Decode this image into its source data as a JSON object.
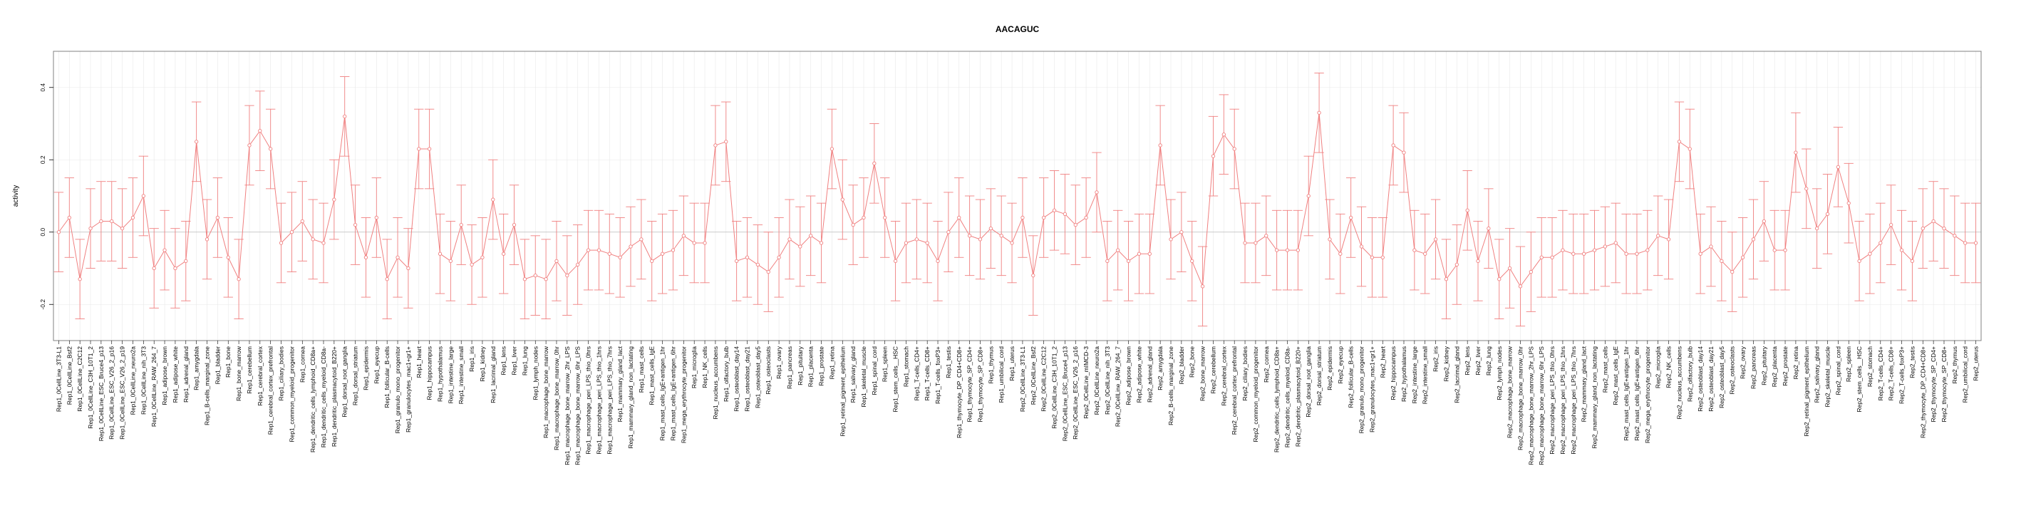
{
  "chart_data": {
    "type": "line",
    "title": "AACAGUC",
    "xlabel": "",
    "ylabel": "activity",
    "ylim": [
      -0.3,
      0.5
    ],
    "yticks": [
      -0.2,
      0.0,
      0.2,
      0.4
    ],
    "ytick_labels": [
      "-0.2",
      "0.0",
      "0.2",
      "0.4"
    ],
    "grid": true,
    "error_bar_halfwidth": 0.11,
    "colors": {
      "series": "#f08080",
      "grid": "#e8e8e8",
      "frame": "#808080",
      "zero": "#bbbbbb"
    },
    "categories": [
      "Rep1_0CellLine_3T3-L1",
      "Rep1_0CellLine_Bsf2",
      "Rep1_0CellLine_C2C12",
      "Rep1_0CellLine_C3H_10T1_2",
      "Rep1_0CellLine_ESC_Bruce4_p13",
      "Rep1_0CellLine_ESC_V26_2_p16",
      "Rep1_0CellLine_ESC_V26_2_p19",
      "Rep1_0CellLine_neuro2a",
      "Rep1_0CellLine_nih_3T3",
      "Rep1_0CellLine_RAW_264_7",
      "Rep1_adipose_brown",
      "Rep1_adipose_white",
      "Rep1_adrenal_gland",
      "Rep1_amygdala",
      "Rep1_B-cells_marginal_zone",
      "Rep1_bladder",
      "Rep1_bone",
      "Rep1_bone_marrow",
      "Rep1_cerebellum",
      "Rep1_cerebral_cortex",
      "Rep1_cerebral_cortex_prefrontal",
      "Rep1_ciliary_bodies",
      "Rep1_common_myeloid_progenitor",
      "Rep1_cornea",
      "Rep1_dendritic_cells_lymphoid_CD8a+",
      "Rep1_dendritic_cells_myeloid_CD8a-",
      "Rep1_dendritic_plasmacytoid_B220+",
      "Rep1_dorsal_root_ganglia",
      "Rep1_dorsal_striatum",
      "Rep1_epidermis",
      "Rep1_eyecup",
      "Rep1_follicular_B-cells",
      "Rep1_granulo_mono_progenitor",
      "Rep1_granulocytes_mac1+gr1+",
      "Rep1_heart",
      "Rep1_hippocampus",
      "Rep1_hypothalamus",
      "Rep1_intestine_large",
      "Rep1_intestine_small",
      "Rep1_iris",
      "Rep1_kidney",
      "Rep1_lacrimal_gland",
      "Rep1_lens",
      "Rep1_liver",
      "Rep1_lung",
      "Rep1_lymph_nodes",
      "Rep1_macrophage_bone_marrow",
      "Rep1_macrophage_bone_marrow_0hr",
      "Rep1_macrophage_bone_marrow_2hr_LPS",
      "Rep1_macrophage_bone_marrow_6hr_LPS",
      "Rep1_macrophage_peri_LPS_thio_0hrs",
      "Rep1_macrophage_peri_LPS_thio_1hrs",
      "Rep1_macrophage_peri_LPS_thio_7hrs",
      "Rep1_mammary_gland_lact",
      "Rep1_mammary_gland_non_lactating",
      "Rep1_mast_cells",
      "Rep1_mast_cells_IgE",
      "Rep1_mast_cells_IgE+antigen_1hr",
      "Rep1_mast_cells_IgE+antigen_6hr",
      "Rep1_mega_erythrocyte_progenitor",
      "Rep1_microglia",
      "Rep1_NK_cells",
      "Rep1_nucleus_accumbens",
      "Rep1_olfactory_bulb",
      "Rep1_osteoblast_day14",
      "Rep1_osteoblast_day21",
      "Rep1_osteoblast_day5",
      "Rep1_osteoclasts",
      "Rep1_ovary",
      "Rep1_pancreas",
      "Rep1_pituitary",
      "Rep1_placenta",
      "Rep1_prostate",
      "Rep1_retina",
      "Rep1_retinal_pigment_epithelium",
      "Rep1_salivary_gland",
      "Rep1_skeletal_muscle",
      "Rep1_spinal_cord",
      "Rep1_spleen",
      "Rep1_stem_cells__HSC",
      "Rep1_stomach",
      "Rep1_T-cells_CD4+",
      "Rep1_T-cells_CD8+",
      "Rep1_T-cells_foxP3+",
      "Rep1_testis",
      "Rep1_thymocyte_DP_CD4+CD8+",
      "Rep1_thymocyte_SP_CD4+",
      "Rep1_thymocyte_SP_CD8+",
      "Rep1_thymus",
      "Rep1_umbilical_cord",
      "Rep1_uterus",
      "Rep2_0CellLine_3T3-L1",
      "Rep2_0CellLine_Bsf2",
      "Rep2_0CellLine_C2C12",
      "Rep2_0CellLine_C3H_10T1_2",
      "Rep2_0CellLine_ESC_Bruce4_p13",
      "Rep2_0CellLine_ESC_V26_2_p16",
      "Rep2_0CellLine_mIMCD-3",
      "Rep2_0CellLine_neuro2a",
      "Rep2_0CellLine_nih_3T3",
      "Rep2_0CellLine_RAW_264_7",
      "Rep2_adipose_brown",
      "Rep2_adipose_white",
      "Rep2_adrenal_gland",
      "Rep2_amygdala",
      "Rep2_B-cells_marginal_zone",
      "Rep2_bladder",
      "Rep2_bone",
      "Rep2_bone_marrow",
      "Rep2_cerebellum",
      "Rep2_cerebral_cortex",
      "Rep2_cerebral_cortex_prefrontal",
      "Rep2_ciliary_bodies",
      "Rep2_common_myeloid_progenitor",
      "Rep2_cornea",
      "Rep2_dendritic_cells_lymphoid_CD8a+",
      "Rep2_dendritic_cells_myeloid_CD8a-",
      "Rep2_dendritic_plasmacytoid_B220+",
      "Rep2_dorsal_root_ganglia",
      "Rep2_dorsal_striatum",
      "Rep2_epidermis",
      "Rep2_eyecup",
      "Rep2_follicular_B-cells",
      "Rep2_granulo_mono_progenitor",
      "Rep2_granulocytes_mac1+gr1+",
      "Rep2_heart",
      "Rep2_hippocampus",
      "Rep2_hypothalamus",
      "Rep2_intestine_large",
      "Rep2_intestine_small",
      "Rep2_iris",
      "Rep2_kidney",
      "Rep2_lacrimal_gland",
      "Rep2_lens",
      "Rep2_liver",
      "Rep2_lung",
      "Rep2_lymph_nodes",
      "Rep2_macrophage_bone_marrow",
      "Rep2_macrophage_bone_marrow_0hr",
      "Rep2_macrophage_bone_marrow_2hr_LPS",
      "Rep2_macrophage_bone_marrow_6hr_LPS",
      "Rep2_macrophage_peri_LPS_thio_0hrs",
      "Rep2_macrophage_peri_LPS_thio_1hrs",
      "Rep2_macrophage_peri_LPS_thio_7hrs",
      "Rep2_mammary_gland_lact",
      "Rep2_mammary_gland_non_lactating",
      "Rep2_mast_cells",
      "Rep2_mast_cells_IgE",
      "Rep2_mast_cells_IgE+antigen_1hr",
      "Rep2_mast_cells_IgE+antigen_6hr",
      "Rep2_mega_erythrocyte_progenitor",
      "Rep2_microglia",
      "Rep2_NK_cells",
      "Rep2_nucleus_accumbens",
      "Rep2_olfactory_bulb",
      "Rep2_osteoblast_day14",
      "Rep2_osteoblast_day21",
      "Rep2_osteoblast_day5",
      "Rep2_osteoclasts",
      "Rep2_ovary",
      "Rep2_pancreas",
      "Rep2_pituitary",
      "Rep2_placenta",
      "Rep2_prostate",
      "Rep2_retina",
      "Rep2_retinal_pigment_epithelium",
      "Rep2_salivary_gland",
      "Rep2_skeletal_muscle",
      "Rep2_spinal_cord",
      "Rep2_spleen",
      "Rep2_stem_cells__HSC",
      "Rep2_stomach",
      "Rep2_T-cells_CD4+",
      "Rep2_T-cells_CD8+",
      "Rep2_T-cells_foxP3+",
      "Rep2_testis",
      "Rep2_thymocyte_DP_CD4+CD8+",
      "Rep2_thymocyte_SP_CD4+",
      "Rep2_thymocyte_SP_CD8+",
      "Rep2_thymus",
      "Rep2_umbilical_cord",
      "Rep2_uterus"
    ],
    "values": [
      0.0,
      0.04,
      -0.13,
      0.01,
      0.03,
      0.03,
      0.01,
      0.04,
      0.1,
      -0.1,
      -0.05,
      -0.1,
      -0.08,
      0.25,
      -0.02,
      0.04,
      -0.07,
      -0.13,
      0.24,
      0.28,
      0.23,
      -0.03,
      0.0,
      0.03,
      -0.02,
      -0.03,
      0.09,
      0.32,
      0.02,
      -0.07,
      0.04,
      -0.13,
      -0.07,
      -0.1,
      0.23,
      0.23,
      -0.06,
      -0.08,
      0.02,
      -0.09,
      -0.07,
      0.09,
      -0.06,
      0.02,
      -0.13,
      -0.12,
      -0.13,
      -0.08,
      -0.12,
      -0.09,
      -0.05,
      -0.05,
      -0.06,
      -0.07,
      -0.04,
      -0.02,
      -0.08,
      -0.06,
      -0.05,
      -0.01,
      -0.03,
      -0.03,
      0.24,
      0.25,
      -0.08,
      -0.07,
      -0.09,
      -0.11,
      -0.07,
      -0.02,
      -0.04,
      -0.01,
      -0.03,
      0.23,
      0.09,
      0.02,
      0.04,
      0.19,
      0.04,
      -0.08,
      -0.03,
      -0.02,
      -0.03,
      -0.08,
      0.0,
      0.04,
      -0.01,
      -0.02,
      0.01,
      -0.01,
      -0.03,
      0.04,
      -0.12,
      0.04,
      0.06,
      0.05,
      0.02,
      0.04,
      0.11,
      -0.08,
      -0.05,
      -0.08,
      -0.06,
      -0.06,
      0.24,
      -0.02,
      0.0,
      -0.08,
      -0.15,
      0.21,
      0.27,
      0.23,
      -0.03,
      -0.03,
      -0.01,
      -0.05,
      -0.05,
      -0.05,
      0.1,
      0.33,
      -0.02,
      -0.06,
      0.04,
      -0.04,
      -0.07,
      -0.07,
      0.24,
      0.22,
      -0.05,
      -0.06,
      -0.02,
      -0.13,
      -0.09,
      0.06,
      -0.08,
      0.01,
      -0.13,
      -0.1,
      -0.15,
      -0.11,
      -0.07,
      -0.07,
      -0.05,
      -0.06,
      -0.06,
      -0.05,
      -0.04,
      -0.03,
      -0.06,
      -0.06,
      -0.05,
      -0.01,
      -0.02,
      0.25,
      0.23,
      -0.06,
      -0.04,
      -0.08,
      -0.11,
      -0.07,
      -0.02,
      0.03,
      -0.05,
      -0.05,
      0.22,
      0.12,
      0.01,
      0.05,
      0.18,
      0.08,
      -0.08,
      -0.06,
      -0.03,
      0.02,
      -0.05,
      -0.08,
      0.01,
      0.03,
      0.01,
      -0.01,
      -0.03,
      -0.03
    ]
  }
}
